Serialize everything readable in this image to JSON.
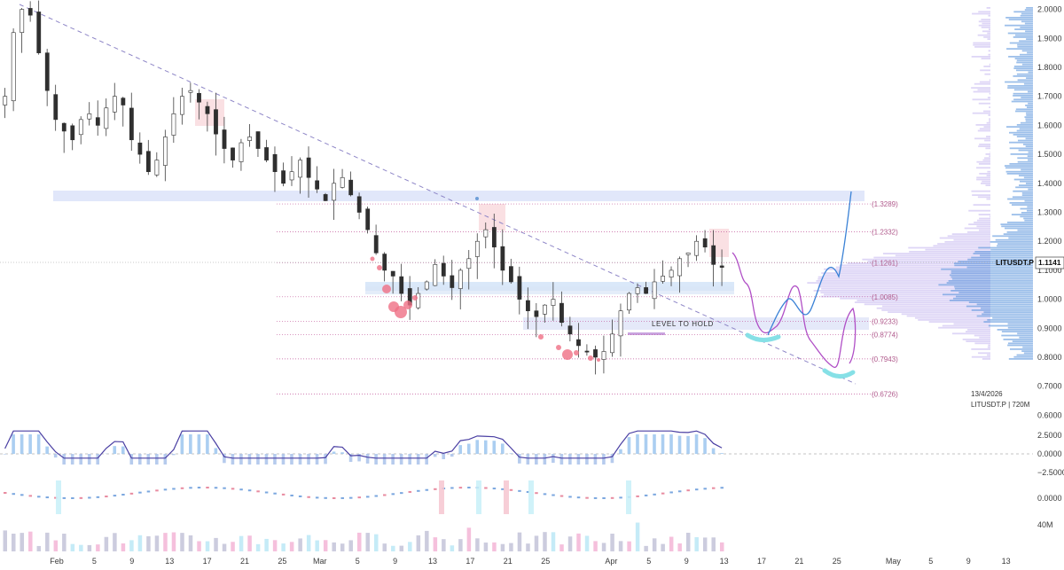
{
  "chart_data": {
    "type": "candlestick",
    "symbol_label": "LITUSDT.P",
    "last_price_label": "1.1141",
    "info_date": "13/4/2026",
    "info_symbol": "LITUSDT.P | 720M",
    "price_axis_ticks": [
      "2.0000",
      "1.9000",
      "1.8000",
      "1.7000",
      "1.6000",
      "1.5000",
      "1.4000",
      "1.3000",
      "1.2000",
      "1.1000",
      "1.0000",
      "0.9000",
      "0.8000",
      "0.7000",
      "0.6000"
    ],
    "osc_axis_ticks": [
      "2.5000",
      "0.0000",
      "−2.5000"
    ],
    "osc2_axis_tick": "0.0000",
    "volume_axis_tick": "40M",
    "x_ticks": [
      {
        "label": "Feb",
        "day": 0
      },
      {
        "label": "5",
        "day": 4
      },
      {
        "label": "9",
        "day": 8
      },
      {
        "label": "13",
        "day": 12
      },
      {
        "label": "17",
        "day": 16
      },
      {
        "label": "21",
        "day": 20
      },
      {
        "label": "25",
        "day": 24
      },
      {
        "label": "Mar",
        "day": 28
      },
      {
        "label": "5",
        "day": 32
      },
      {
        "label": "9",
        "day": 36
      },
      {
        "label": "13",
        "day": 40
      },
      {
        "label": "17",
        "day": 44
      },
      {
        "label": "21",
        "day": 48
      },
      {
        "label": "25",
        "day": 52
      },
      {
        "label": "Apr",
        "day": 59
      },
      {
        "label": "5",
        "day": 63
      },
      {
        "label": "9",
        "day": 67
      },
      {
        "label": "13",
        "day": 71
      },
      {
        "label": "17",
        "day": 75
      },
      {
        "label": "21",
        "day": 79
      },
      {
        "label": "25",
        "day": 83
      },
      {
        "label": "May",
        "day": 89
      },
      {
        "label": "5",
        "day": 93
      },
      {
        "label": "9",
        "day": 97
      },
      {
        "label": "13",
        "day": 101
      }
    ],
    "fib_levels": [
      {
        "label": "(1.3289)",
        "price": 1.3289
      },
      {
        "label": "(1.2332)",
        "price": 1.2332
      },
      {
        "label": "(1.1261)",
        "price": 1.1261
      },
      {
        "label": "(1.0085)",
        "price": 1.0085
      },
      {
        "label": "(0.9233)",
        "price": 0.9233
      },
      {
        "label": "(0.8774)",
        "price": 0.8774
      },
      {
        "label": "(0.7943)",
        "price": 0.7943
      },
      {
        "label": "(0.6726)",
        "price": 0.6726
      }
    ],
    "annotation": "LEVEL TO HOLD",
    "colors": {
      "up": "#5b9bd5",
      "down": "#e57a86",
      "wick": "#3d3d3d",
      "fib": "#c2579a",
      "projection_purple": "#b04fc6",
      "projection_blue": "#3b82d6"
    }
  }
}
